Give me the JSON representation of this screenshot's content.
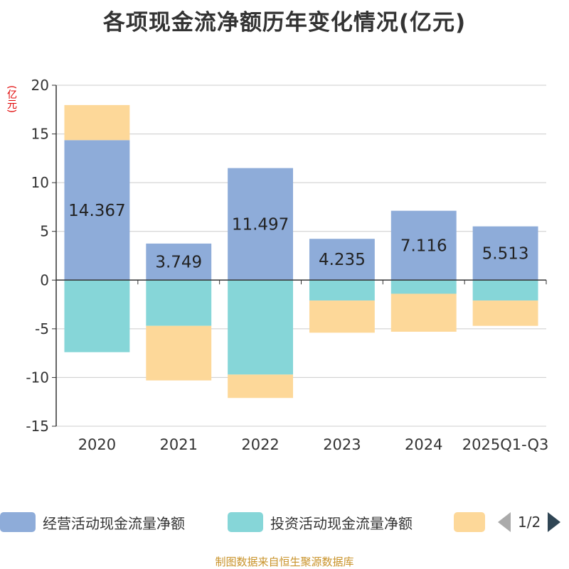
{
  "title": "各项现金流净额历年变化情况(亿元)",
  "unit_label": "(亿元)",
  "source": "制图数据来自恒生聚源数据库",
  "legend": {
    "items": [
      {
        "name": "经营活动现金流量净额",
        "color": "#8eacd9"
      },
      {
        "name": "投资活动现金流量净额",
        "color": "#86d6d8"
      },
      {
        "name": "",
        "color": "#fdd899"
      }
    ],
    "page": "1/2"
  },
  "chart_data": {
    "type": "bar",
    "stacked": true,
    "categories": [
      "2020",
      "2021",
      "2022",
      "2023",
      "2024",
      "2025Q1-Q3"
    ],
    "ylim": [
      -15,
      20
    ],
    "yticks": [
      20,
      15,
      10,
      5,
      0,
      -5,
      -10,
      -15
    ],
    "series": [
      {
        "name": "经营活动现金流量净额",
        "color": "#8eacd9",
        "values": [
          14.367,
          3.749,
          11.497,
          4.235,
          7.116,
          5.513
        ],
        "labels": [
          "14.367",
          "3.749",
          "11.497",
          "4.235",
          "7.116",
          "5.513"
        ]
      },
      {
        "name": "投资活动现金流量净额",
        "color": "#86d6d8",
        "values": [
          -7.4,
          -4.7,
          -9.7,
          -2.1,
          -1.4,
          -2.1
        ]
      },
      {
        "name": "",
        "color": "#fdd899",
        "values": [
          3.6,
          -5.6,
          -2.4,
          -3.3,
          -3.9,
          -2.6
        ]
      }
    ]
  }
}
